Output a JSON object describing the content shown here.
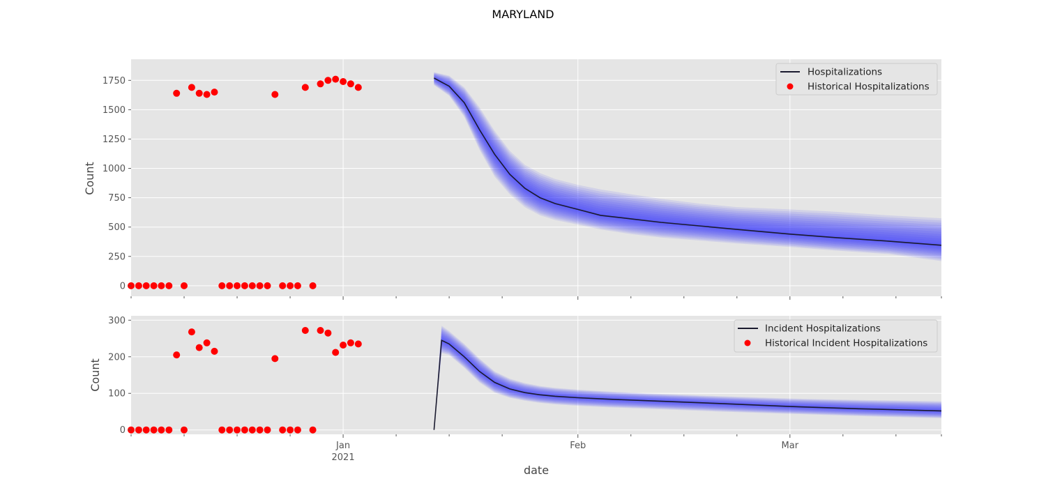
{
  "title": "MARYLAND",
  "colors": {
    "background": "#e5e5e5",
    "grid": "#ffffff",
    "median_line": "#1a1a2e",
    "band": "#3030ff",
    "historical": "#ff0000"
  },
  "x_axis": {
    "label": "date",
    "range": [
      "2020-12-04",
      "2021-03-21"
    ],
    "ticks": [
      {
        "date": "2021-01-01",
        "label": "Jan",
        "sublabel": "2021"
      },
      {
        "date": "2021-02-01",
        "label": "Feb",
        "sublabel": ""
      },
      {
        "date": "2021-03-01",
        "label": "Mar",
        "sublabel": ""
      }
    ],
    "minor_ticks": [
      "2020-12-04",
      "2020-12-11",
      "2020-12-18",
      "2020-12-25",
      "2021-01-08",
      "2021-01-15",
      "2021-01-22",
      "2021-02-08",
      "2021-02-15",
      "2021-02-22",
      "2021-03-08",
      "2021-03-15",
      "2021-03-21"
    ]
  },
  "chart_data": [
    {
      "type": "line",
      "ylabel": "Count",
      "ylim": [
        -90,
        1930
      ],
      "yticks": [
        0,
        250,
        500,
        750,
        1000,
        1250,
        1500,
        1750
      ],
      "grid": true,
      "legend_position": "top-right",
      "series": [
        {
          "name": "Hospitalizations",
          "kind": "median-forecast",
          "x": [
            "2021-01-13",
            "2021-01-15",
            "2021-01-17",
            "2021-01-19",
            "2021-01-21",
            "2021-01-23",
            "2021-01-25",
            "2021-01-27",
            "2021-01-29",
            "2021-02-01",
            "2021-02-04",
            "2021-02-08",
            "2021-02-12",
            "2021-02-17",
            "2021-02-22",
            "2021-03-01",
            "2021-03-07",
            "2021-03-14",
            "2021-03-21"
          ],
          "y": [
            1770,
            1700,
            1560,
            1330,
            1120,
            950,
            830,
            750,
            700,
            650,
            600,
            570,
            540,
            510,
            480,
            440,
            410,
            380,
            345
          ],
          "band_upper": [
            1820,
            1790,
            1690,
            1520,
            1320,
            1150,
            1030,
            960,
            910,
            860,
            820,
            780,
            740,
            700,
            670,
            650,
            630,
            600,
            575
          ],
          "band_lower": [
            1710,
            1620,
            1440,
            1160,
            930,
            780,
            670,
            600,
            560,
            520,
            480,
            440,
            410,
            385,
            360,
            330,
            300,
            270,
            210
          ]
        },
        {
          "name": "Historical Hospitalizations",
          "kind": "historical",
          "x": [
            "2020-12-04",
            "2020-12-05",
            "2020-12-06",
            "2020-12-07",
            "2020-12-08",
            "2020-12-09",
            "2020-12-10",
            "2020-12-11",
            "2020-12-12",
            "2020-12-13",
            "2020-12-14",
            "2020-12-15",
            "2020-12-16",
            "2020-12-17",
            "2020-12-18",
            "2020-12-19",
            "2020-12-20",
            "2020-12-21",
            "2020-12-22",
            "2020-12-23",
            "2020-12-24",
            "2020-12-25",
            "2020-12-26",
            "2020-12-27",
            "2020-12-28",
            "2020-12-29",
            "2020-12-30",
            "2020-12-31",
            "2021-01-01",
            "2021-01-02",
            "2021-01-03",
            "2021-01-04",
            "2021-01-05",
            "2021-01-06",
            "2021-01-07",
            "2021-01-08",
            "2021-01-09",
            "2021-01-10",
            "2021-01-11",
            "2021-01-12",
            "2021-01-13"
          ],
          "y": [
            0,
            0,
            0,
            0,
            0,
            0,
            1640,
            0,
            1690,
            1640,
            1630,
            1650,
            0,
            0,
            0,
            0,
            0,
            0,
            0,
            1630,
            0,
            0,
            0,
            1690,
            0,
            1720,
            1750,
            1760,
            1740,
            1720,
            1690,
            null,
            null,
            null,
            null,
            null,
            null,
            null,
            null,
            null,
            null
          ]
        }
      ]
    },
    {
      "type": "line",
      "ylabel": "Count",
      "ylim": [
        -12,
        312
      ],
      "yticks": [
        0,
        100,
        200,
        300
      ],
      "grid": true,
      "legend_position": "top-right",
      "series": [
        {
          "name": "Incident Hospitalizations",
          "kind": "median-forecast",
          "x": [
            "2021-01-13",
            "2021-01-14",
            "2021-01-15",
            "2021-01-17",
            "2021-01-19",
            "2021-01-21",
            "2021-01-23",
            "2021-01-25",
            "2021-01-27",
            "2021-01-29",
            "2021-02-01",
            "2021-02-05",
            "2021-02-10",
            "2021-02-15",
            "2021-02-20",
            "2021-03-01",
            "2021-03-10",
            "2021-03-21"
          ],
          "y": [
            0,
            245,
            235,
            200,
            160,
            130,
            112,
            102,
            96,
            92,
            88,
            84,
            80,
            76,
            72,
            64,
            58,
            52
          ],
          "band_upper": [
            0,
            285,
            270,
            235,
            195,
            160,
            140,
            128,
            120,
            115,
            110,
            105,
            100,
            96,
            92,
            86,
            82,
            78
          ],
          "band_lower": [
            0,
            210,
            205,
            170,
            130,
            102,
            88,
            80,
            74,
            70,
            66,
            62,
            58,
            54,
            50,
            44,
            38,
            32
          ]
        },
        {
          "name": "Historical Incident Hospitalizations",
          "kind": "historical",
          "x": [
            "2020-12-04",
            "2020-12-05",
            "2020-12-06",
            "2020-12-07",
            "2020-12-08",
            "2020-12-09",
            "2020-12-10",
            "2020-12-11",
            "2020-12-12",
            "2020-12-13",
            "2020-12-14",
            "2020-12-15",
            "2020-12-16",
            "2020-12-17",
            "2020-12-18",
            "2020-12-19",
            "2020-12-20",
            "2020-12-21",
            "2020-12-22",
            "2020-12-23",
            "2020-12-24",
            "2020-12-25",
            "2020-12-26",
            "2020-12-27",
            "2020-12-28",
            "2020-12-29",
            "2020-12-30",
            "2020-12-31",
            "2021-01-01",
            "2021-01-02",
            "2021-01-03"
          ],
          "y": [
            0,
            0,
            0,
            0,
            0,
            0,
            205,
            0,
            268,
            225,
            238,
            215,
            0,
            0,
            0,
            0,
            0,
            0,
            0,
            195,
            0,
            0,
            0,
            272,
            0,
            272,
            265,
            212,
            232,
            238,
            235
          ]
        }
      ]
    }
  ]
}
